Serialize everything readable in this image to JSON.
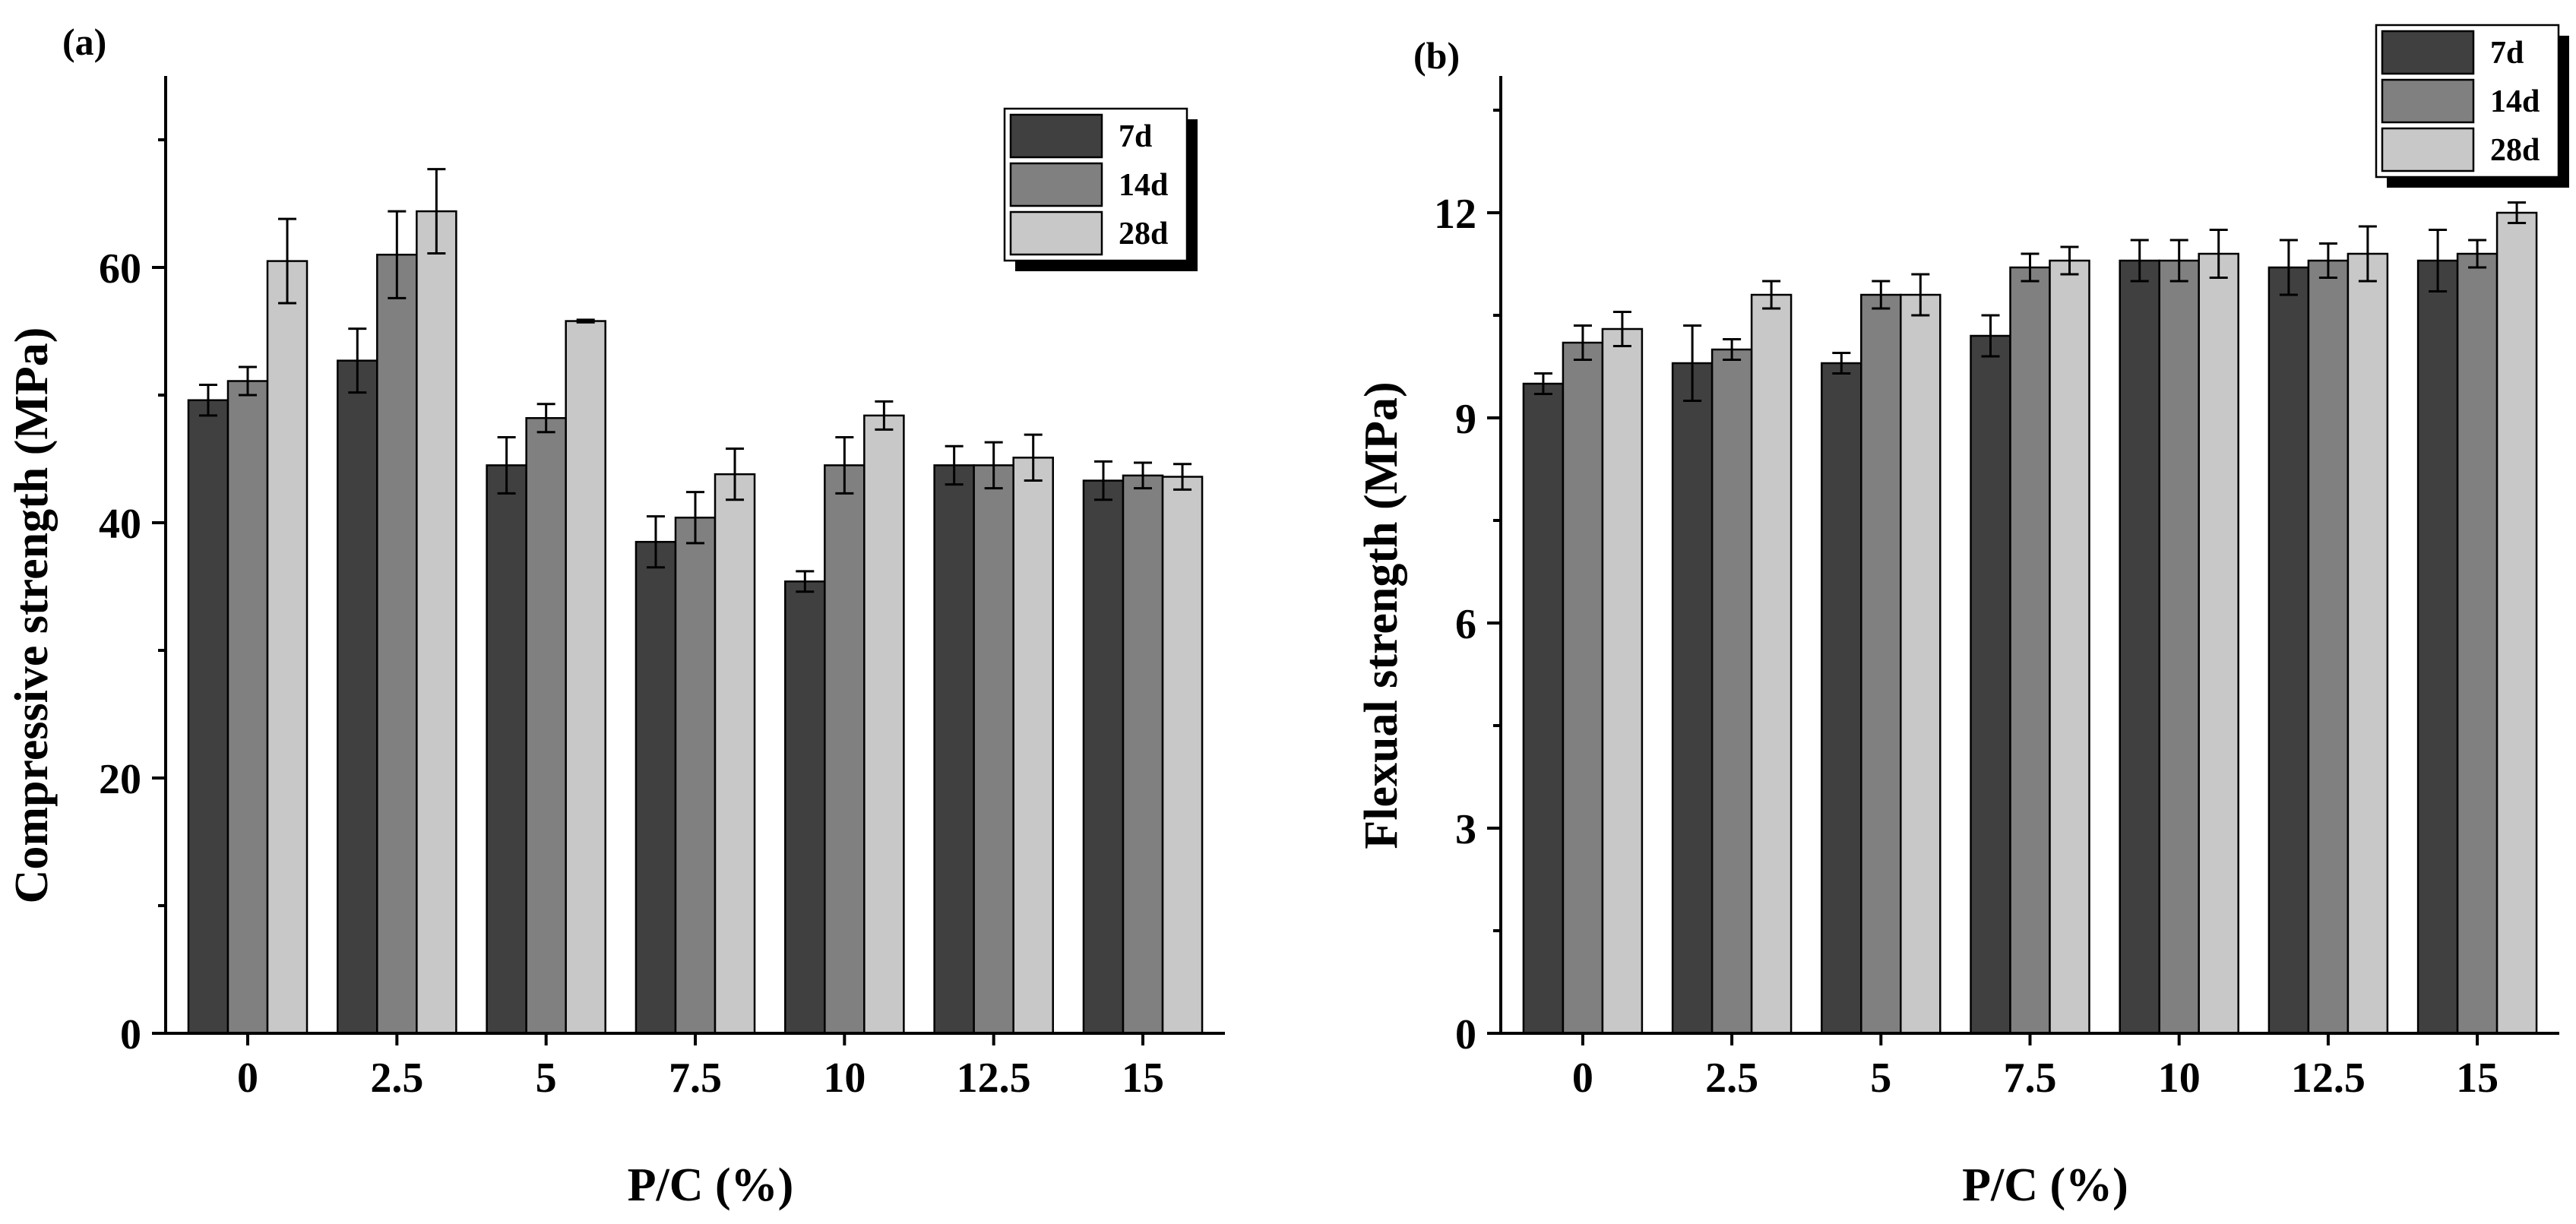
{
  "chart_data": [
    {
      "panel_label": "(a)",
      "type": "bar",
      "ylabel": "Compressive strength (MPa)",
      "xlabel": "P/C (%)",
      "categories": [
        "0",
        "2.5",
        "5",
        "7.5",
        "10",
        "12.5",
        "15"
      ],
      "ylim": [
        0,
        75
      ],
      "yticks": [
        0,
        20,
        40,
        60
      ],
      "legend_position": "top-right",
      "series": [
        {
          "name": "7d",
          "color": "#404040",
          "values": [
            49.6,
            52.7,
            44.5,
            38.5,
            35.4,
            44.5,
            43.3
          ],
          "errors": [
            1.2,
            2.5,
            2.2,
            2.0,
            0.8,
            1.5,
            1.5
          ]
        },
        {
          "name": "14d",
          "color": "#808080",
          "values": [
            51.1,
            61.0,
            48.2,
            40.4,
            44.5,
            44.5,
            43.7
          ],
          "errors": [
            1.1,
            3.4,
            1.1,
            2.0,
            2.2,
            1.8,
            1.0
          ]
        },
        {
          "name": "28d",
          "color": "#c8c8c8",
          "values": [
            60.5,
            64.4,
            55.8,
            43.8,
            48.4,
            45.1,
            43.6
          ],
          "errors": [
            3.3,
            3.3,
            0.1,
            2.0,
            1.1,
            1.8,
            1.0
          ]
        }
      ]
    },
    {
      "panel_label": "(b)",
      "type": "bar",
      "ylabel": "Flexual strength (MPa)",
      "xlabel": "P/C (%)",
      "categories": [
        "0",
        "2.5",
        "5",
        "7.5",
        "10",
        "12.5",
        "15"
      ],
      "ylim": [
        0,
        14
      ],
      "yticks": [
        0,
        3,
        6,
        9,
        12
      ],
      "legend_position": "top-right",
      "series": [
        {
          "name": "7d",
          "color": "#404040",
          "values": [
            9.5,
            9.8,
            9.8,
            10.2,
            11.3,
            11.2,
            11.3
          ],
          "errors": [
            0.15,
            0.55,
            0.15,
            0.3,
            0.3,
            0.4,
            0.45
          ]
        },
        {
          "name": "14d",
          "color": "#808080",
          "values": [
            10.1,
            10.0,
            10.8,
            11.2,
            11.3,
            11.3,
            11.4
          ],
          "errors": [
            0.25,
            0.15,
            0.2,
            0.2,
            0.3,
            0.25,
            0.2
          ]
        },
        {
          "name": "28d",
          "color": "#c8c8c8",
          "values": [
            10.3,
            10.8,
            10.8,
            11.3,
            11.4,
            11.4,
            12.0
          ],
          "errors": [
            0.25,
            0.2,
            0.3,
            0.2,
            0.35,
            0.4,
            0.15
          ]
        }
      ]
    }
  ]
}
